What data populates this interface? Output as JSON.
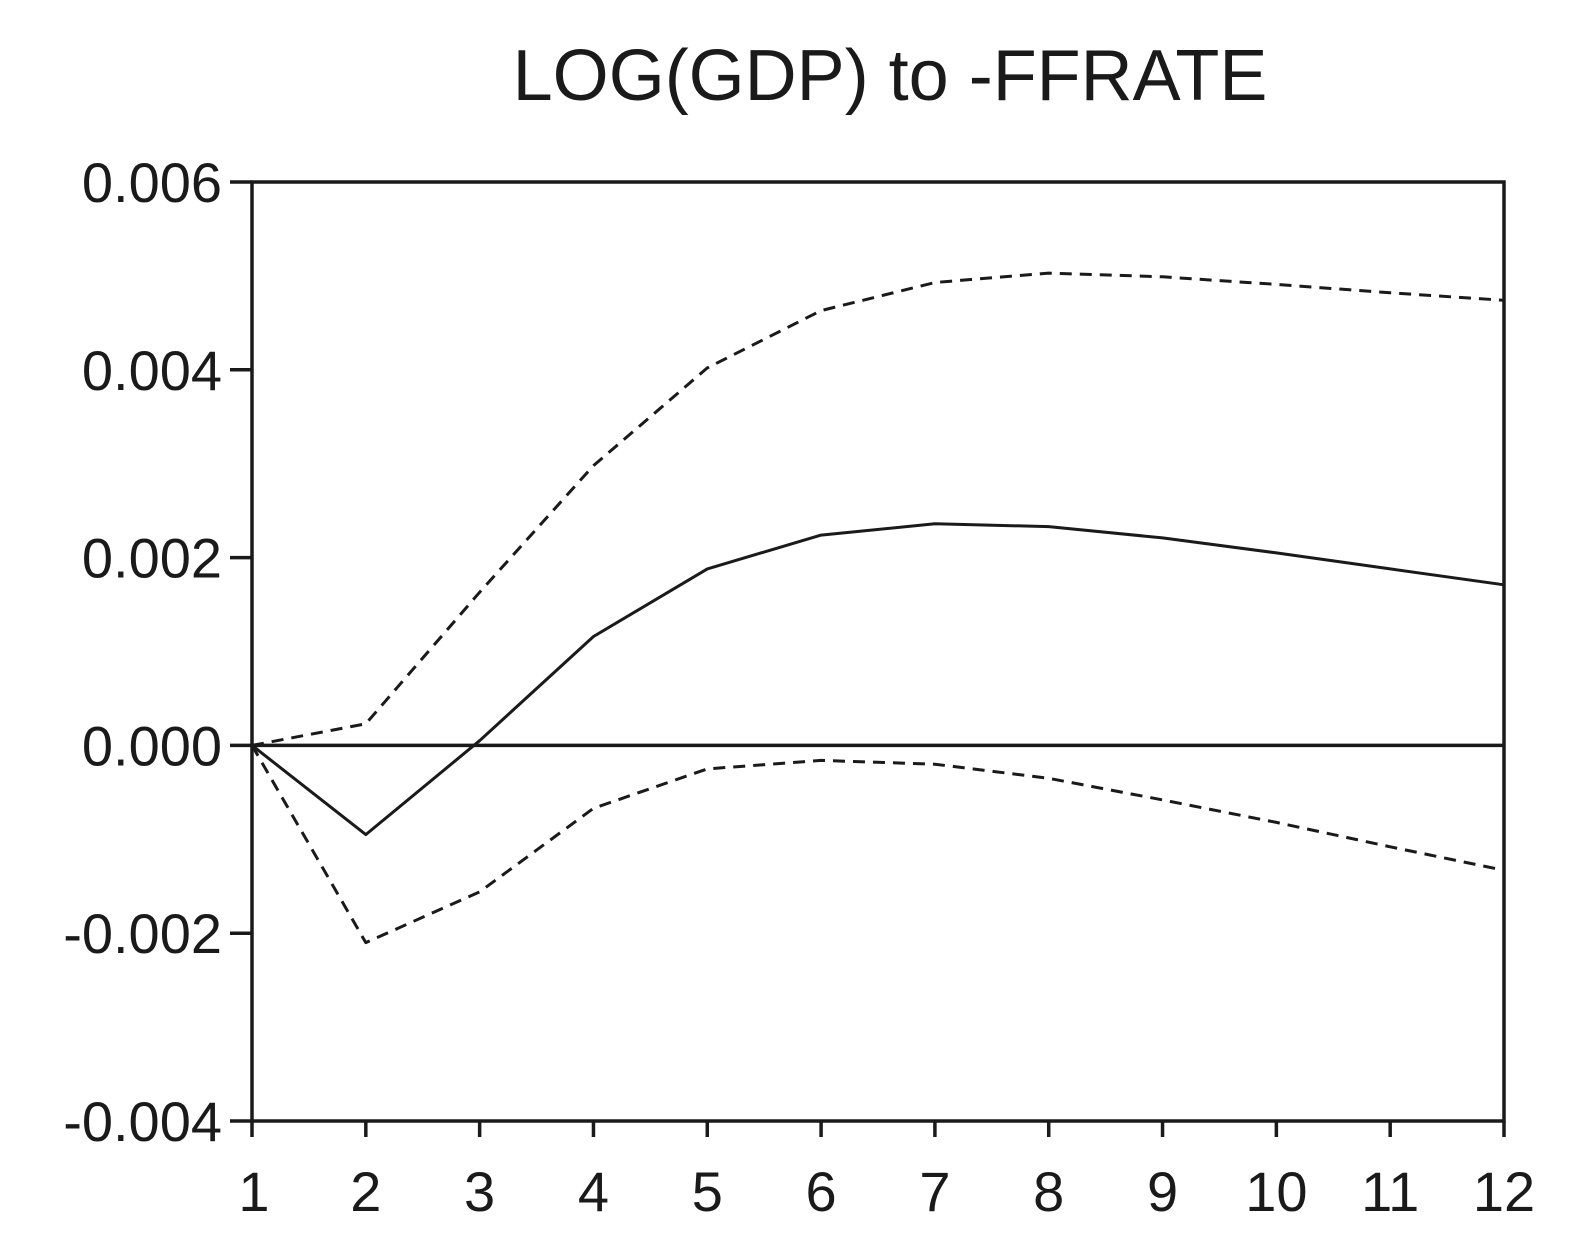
{
  "chart_data": {
    "type": "line",
    "title": "LOG(GDP) to -FFRATE",
    "xlabel": "",
    "ylabel": "",
    "x": [
      1,
      2,
      3,
      4,
      5,
      6,
      7,
      8,
      9,
      10,
      11,
      12
    ],
    "x_tick_labels": [
      "1",
      "2",
      "3",
      "4",
      "5",
      "6",
      "7",
      "8",
      "9",
      "10",
      "11",
      "12"
    ],
    "y_tick_labels": [
      "0.006",
      "0.004",
      "0.002",
      "0.000",
      "-0.002",
      "-0.004"
    ],
    "y_ticks": [
      0.006,
      0.004,
      0.002,
      0.0,
      -0.002,
      -0.004
    ],
    "ylim": [
      -0.004,
      0.006
    ],
    "xlim": [
      1,
      12
    ],
    "grid": false,
    "legend": false,
    "zero_line": true,
    "series": [
      {
        "style": "solid",
        "values": [
          0.0,
          -0.00095,
          5e-05,
          0.00116,
          0.00188,
          0.00224,
          0.00236,
          0.00233,
          0.00221,
          0.00205,
          0.00188,
          0.00171
        ]
      },
      {
        "style": "dashed",
        "values": [
          0.0,
          0.00023,
          0.00163,
          0.00298,
          0.00402,
          0.00463,
          0.00493,
          0.00503,
          0.00499,
          0.00491,
          0.00482,
          0.00474
        ]
      },
      {
        "style": "dashed",
        "values": [
          0.0,
          -0.0021,
          -0.00156,
          -0.00067,
          -0.00025,
          -0.00016,
          -0.0002,
          -0.00035,
          -0.00058,
          -0.00082,
          -0.00108,
          -0.00133
        ]
      }
    ]
  }
}
